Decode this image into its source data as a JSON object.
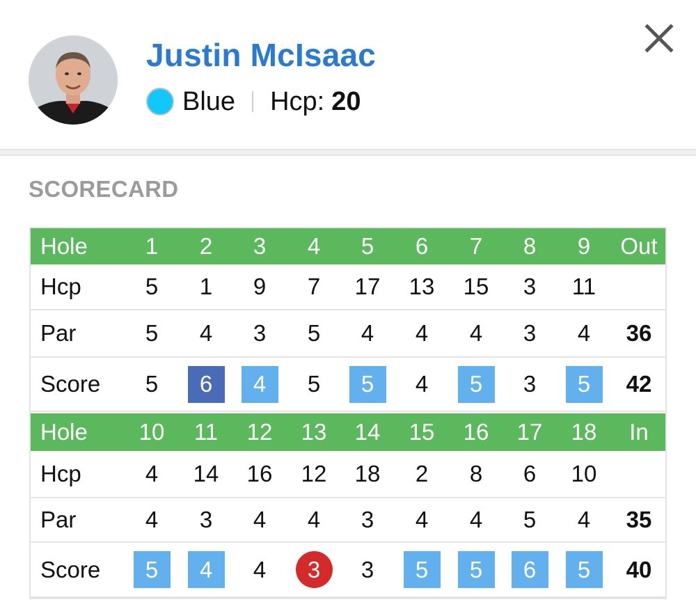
{
  "player": {
    "name": "Justin McIsaac",
    "tee": "Blue",
    "tee_color": "#10c8fb",
    "hcp_label": "Hcp:",
    "hcp_value": "20"
  },
  "section_title": "SCORECARD",
  "colors": {
    "header_green": "#5cb85c",
    "bogey": "#63b0ef",
    "double_bogey": "#4a6bb8",
    "birdie": "#d42a2a",
    "name_blue": "#2a7ad2"
  },
  "front": {
    "hole_label": "Hole",
    "holes": [
      "1",
      "2",
      "3",
      "4",
      "5",
      "6",
      "7",
      "8",
      "9"
    ],
    "total_label": "Out",
    "hcp_label": "Hcp",
    "hcp": [
      "5",
      "1",
      "9",
      "7",
      "17",
      "13",
      "15",
      "3",
      "11"
    ],
    "par_label": "Par",
    "par": [
      "5",
      "4",
      "3",
      "5",
      "4",
      "4",
      "4",
      "3",
      "4"
    ],
    "par_total": "36",
    "score_label": "Score",
    "score": [
      "5",
      "6",
      "4",
      "5",
      "5",
      "4",
      "5",
      "3",
      "5"
    ],
    "score_type": [
      "par",
      "double",
      "bogey",
      "par",
      "bogey",
      "par",
      "bogey",
      "par",
      "bogey"
    ],
    "score_total": "42"
  },
  "back": {
    "hole_label": "Hole",
    "holes": [
      "10",
      "11",
      "12",
      "13",
      "14",
      "15",
      "16",
      "17",
      "18"
    ],
    "total_label": "In",
    "hcp_label": "Hcp",
    "hcp": [
      "4",
      "14",
      "16",
      "12",
      "18",
      "2",
      "8",
      "6",
      "10"
    ],
    "par_label": "Par",
    "par": [
      "4",
      "3",
      "4",
      "4",
      "3",
      "4",
      "4",
      "5",
      "4"
    ],
    "par_total": "35",
    "score_label": "Score",
    "score": [
      "5",
      "4",
      "4",
      "3",
      "3",
      "5",
      "5",
      "6",
      "5"
    ],
    "score_type": [
      "bogey",
      "bogey",
      "par",
      "birdie",
      "par",
      "bogey",
      "bogey",
      "bogey",
      "bogey"
    ],
    "score_total": "40"
  }
}
